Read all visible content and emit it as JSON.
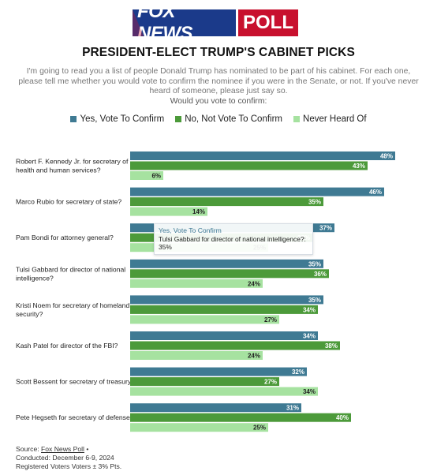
{
  "logo": {
    "brand": "FOX NEWS",
    "suffix": "POLL"
  },
  "title": "PRESIDENT-ELECT TRUMP'S CABINET PICKS",
  "question": "I'm going to read you a list of people Donald Trump has nominated to be part of his cabinet. For each one, please tell me whether you would vote to confirm the nominee if you were in the Senate, or not. If you've never heard of someone, please just say so.",
  "question_followup": "Would you vote to confirm:",
  "colors": {
    "yes": "#3f7a93",
    "no": "#4c9a3a",
    "never": "#a6e2a0"
  },
  "chart_data": {
    "type": "bar",
    "orientation": "horizontal",
    "categories": [
      "Robert F. Kennedy Jr. for secretary of health and human services?",
      "Marco Rubio for secretary of state?",
      "Pam Bondi for attorney general?",
      "Tulsi Gabbard for director of national intelligence?",
      "Kristi Noem for secretary of homeland security?",
      "Kash Patel for director of the FBI?",
      "Scott Bessent for secretary of treasury?",
      "Pete Hegseth for secretary of defense?"
    ],
    "label_lines": [
      [
        "Robert F. Kennedy Jr. for secretary of",
        "health and human services?"
      ],
      [
        "Marco Rubio for secretary of state?"
      ],
      [
        "Pam Bondi for attorney general?"
      ],
      [
        "Tulsi Gabbard for director of national",
        "intelligence?"
      ],
      [
        "Kristi Noem for secretary of homeland",
        "security?"
      ],
      [
        "Kash Patel for director of the FBI?"
      ],
      [
        "Scott Bessent for secretary of treasury?"
      ],
      [
        "Pete Hegseth for secretary of defense?"
      ]
    ],
    "series": [
      {
        "name": "Yes, Vote To Confirm",
        "values": [
          48,
          46,
          37,
          35,
          35,
          34,
          32,
          31
        ]
      },
      {
        "name": "No, Not Vote To Confirm",
        "values": [
          43,
          35,
          33,
          36,
          34,
          38,
          27,
          40
        ]
      },
      {
        "name": "Never Heard Of",
        "values": [
          6,
          14,
          25,
          24,
          27,
          24,
          34,
          25
        ]
      }
    ],
    "value_suffix": "%",
    "xlim": [
      0,
      50
    ],
    "legend_position": "top-center",
    "grid": false
  },
  "tooltip": {
    "series": "Yes, Vote To Confirm",
    "category": "Tulsi Gabbard for director of national intelligence?:",
    "value": "35%"
  },
  "source": {
    "prefix": "Source: ",
    "link": "Fox News Poll",
    "suffix": " •",
    "conducted": "Conducted: December 6-9, 2024",
    "sample": "Registered Voters Voters ± 3% Pts."
  }
}
